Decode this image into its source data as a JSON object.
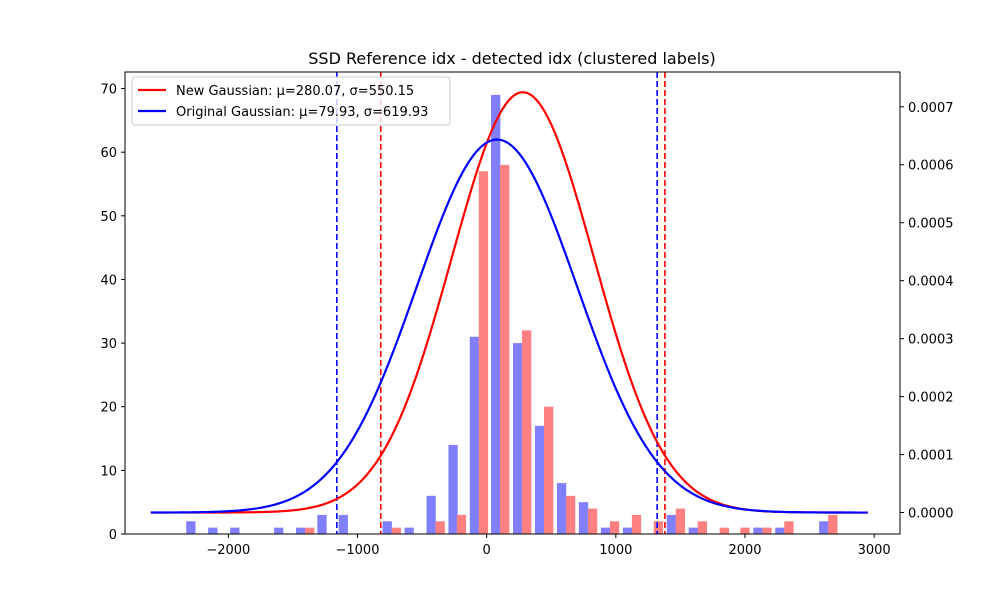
{
  "chart_data": {
    "type": "bar",
    "title": "SSD Reference idx - detected idx (clustered labels)",
    "xlabel": "",
    "ylabel": "",
    "xlim": [
      -2800,
      3200
    ],
    "ylim": [
      0,
      72.6
    ],
    "y2lim": [
      -3.7e-05,
      0.00076
    ],
    "grid": false,
    "legend_position": "top-left",
    "x_ticks": [
      -2000,
      -1000,
      0,
      1000,
      2000,
      3000
    ],
    "x_tick_labels": [
      "−2000",
      "−1000",
      "0",
      "1000",
      "2000",
      "3000"
    ],
    "y_ticks": [
      0,
      10,
      20,
      30,
      40,
      50,
      60,
      70
    ],
    "y2_ticks": [
      0.0,
      0.0001,
      0.0002,
      0.0003,
      0.0004,
      0.0005,
      0.0006,
      0.0007
    ],
    "y2_tick_labels": [
      "0.0000",
      "0.0001",
      "0.0002",
      "0.0003",
      "0.0004",
      "0.0005",
      "0.0006",
      "0.0007"
    ],
    "bar_width": 72,
    "bar_series": [
      {
        "color": "#8080ff",
        "bars": [
          {
            "x": -2290,
            "y": 2
          },
          {
            "x": -2120,
            "y": 1
          },
          {
            "x": -1950,
            "y": 1
          },
          {
            "x": -1610,
            "y": 1
          },
          {
            "x": -1440,
            "y": 1
          },
          {
            "x": -1275,
            "y": 3
          },
          {
            "x": -1110,
            "y": 3
          },
          {
            "x": -770,
            "y": 2
          },
          {
            "x": -600,
            "y": 1
          },
          {
            "x": -430,
            "y": 6
          },
          {
            "x": -260,
            "y": 14
          },
          {
            "x": -95,
            "y": 31
          },
          {
            "x": 70,
            "y": 69
          },
          {
            "x": 240,
            "y": 30
          },
          {
            "x": 410,
            "y": 17
          },
          {
            "x": 580,
            "y": 8
          },
          {
            "x": 750,
            "y": 5
          },
          {
            "x": 920,
            "y": 1
          },
          {
            "x": 1090,
            "y": 1
          },
          {
            "x": 1430,
            "y": 3
          },
          {
            "x": 1600,
            "y": 1
          },
          {
            "x": 2100,
            "y": 1
          },
          {
            "x": 2270,
            "y": 1
          },
          {
            "x": 2610,
            "y": 2
          }
        ]
      },
      {
        "color": "#ff8080",
        "bars": [
          {
            "x": -1370,
            "y": 1
          },
          {
            "x": -700,
            "y": 1
          },
          {
            "x": -360,
            "y": 2
          },
          {
            "x": -195,
            "y": 3
          },
          {
            "x": -25,
            "y": 57
          },
          {
            "x": 140,
            "y": 58
          },
          {
            "x": 310,
            "y": 32
          },
          {
            "x": 480,
            "y": 20
          },
          {
            "x": 650,
            "y": 6
          },
          {
            "x": 820,
            "y": 4
          },
          {
            "x": 990,
            "y": 2
          },
          {
            "x": 1160,
            "y": 3
          },
          {
            "x": 1330,
            "y": 2
          },
          {
            "x": 1500,
            "y": 4
          },
          {
            "x": 1670,
            "y": 2
          },
          {
            "x": 1840,
            "y": 1
          },
          {
            "x": 2000,
            "y": 1
          },
          {
            "x": 2170,
            "y": 1
          },
          {
            "x": 2340,
            "y": 2
          },
          {
            "x": 2680,
            "y": 3
          }
        ]
      }
    ],
    "curves": [
      {
        "name": "New Gaussian: μ=280.07, σ=550.15",
        "color": "#ff0000",
        "mu": 280.07,
        "sigma": 550.15,
        "x_range": [
          -2600,
          2950
        ]
      },
      {
        "name": "Original Gaussian: μ=79.93, σ=619.93",
        "color": "#0000ff",
        "mu": 79.93,
        "sigma": 619.93,
        "x_range": [
          -2600,
          2950
        ]
      }
    ],
    "vlines": [
      {
        "x": -1160,
        "color": "#0000ff"
      },
      {
        "x": 1320,
        "color": "#0000ff"
      },
      {
        "x": -820,
        "color": "#ff0000"
      },
      {
        "x": 1380,
        "color": "#ff0000"
      }
    ]
  }
}
